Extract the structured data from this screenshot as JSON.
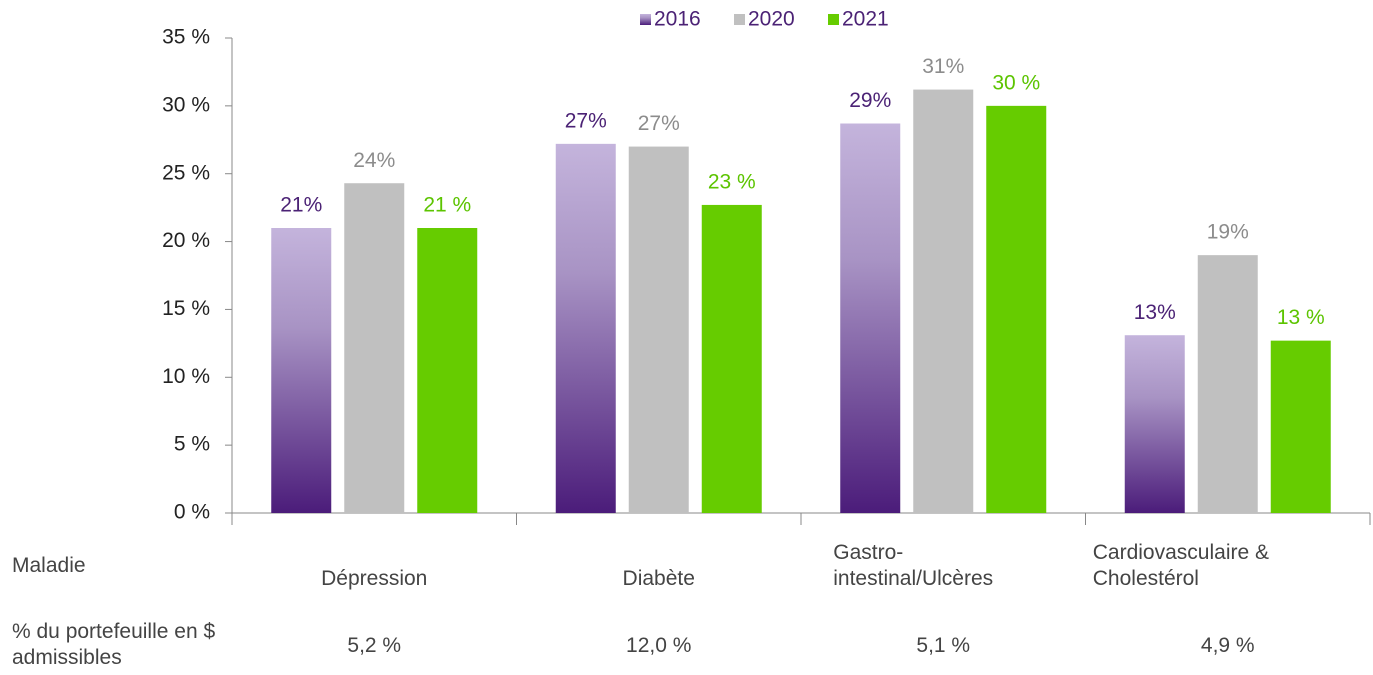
{
  "chart_data": {
    "type": "bar",
    "categories": [
      "Dépression",
      "Diabète",
      "Gastro-intestinal/Ulcères",
      "Cardiovasculaire & Cholestérol"
    ],
    "series": [
      {
        "name": "2016",
        "color": "#4b1c7a",
        "label_color": "#4b2275",
        "values": [
          21,
          27.2,
          28.7,
          13.1
        ],
        "value_labels": [
          "21%",
          "27%",
          "29%",
          "13%"
        ]
      },
      {
        "name": "2020",
        "color": "#c0c0c0",
        "label_color": "#8c8c8c",
        "values": [
          24.3,
          27,
          31.2,
          19
        ],
        "value_labels": [
          "24%",
          "27%",
          "31%",
          "19%"
        ]
      },
      {
        "name": "2021",
        "color": "#66cc00",
        "label_color": "#5cc400",
        "values": [
          21,
          22.7,
          30,
          12.7
        ],
        "value_labels": [
          "21 %",
          "23 %",
          "30 %",
          "13 %"
        ]
      }
    ],
    "ylim": [
      0,
      35
    ],
    "yticks": [
      {
        "value": 0,
        "label": "0 %"
      },
      {
        "value": 5,
        "label": "5 %"
      },
      {
        "value": 10,
        "label": "10 %"
      },
      {
        "value": 15,
        "label": "15 %"
      },
      {
        "value": 20,
        "label": "20 %"
      },
      {
        "value": 25,
        "label": "25 %"
      },
      {
        "value": 30,
        "label": "30 %"
      },
      {
        "value": 35,
        "label": "35 %"
      }
    ],
    "legend": "top",
    "table": {
      "header": "Maladie",
      "row_label": "% du portefeuille en $ admissibles",
      "row_values": [
        "5,2 %",
        "12,0 %",
        "5,1 %",
        "4,9 %"
      ]
    }
  }
}
